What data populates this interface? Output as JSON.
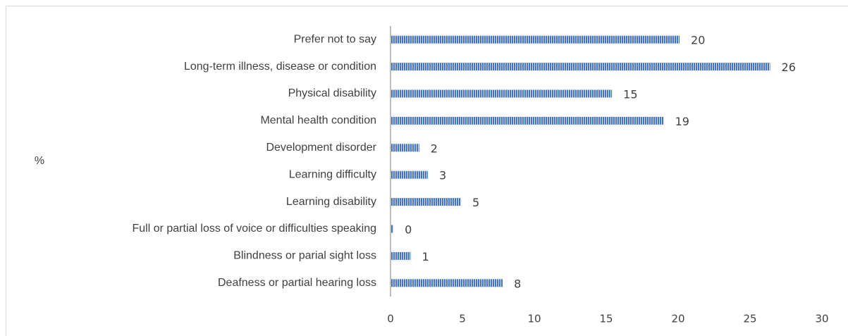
{
  "chart_data": {
    "type": "bar",
    "orientation": "horizontal",
    "y_label": "%",
    "categories": [
      "Prefer not to say",
      "Long-term illness, disease or condition",
      "Physical disability",
      "Mental health condition",
      "Development disorder",
      "Learning difficulty",
      "Learning disability",
      "Full or partial loss of voice or difficulties speaking",
      "Blindness or parial sight loss",
      "Deafness or partial hearing loss"
    ],
    "values": [
      20.1,
      26.4,
      15.4,
      19.0,
      2.0,
      2.6,
      4.9,
      0.2,
      1.4,
      7.8
    ],
    "value_labels": [
      "20",
      "26",
      "15",
      "19",
      "2",
      "3",
      "5",
      "0",
      "1",
      "8"
    ],
    "color": "#4472c4",
    "xlim": [
      0,
      30
    ],
    "xticks": [
      0,
      5,
      10,
      15,
      20,
      25,
      30
    ],
    "grid": false
  }
}
